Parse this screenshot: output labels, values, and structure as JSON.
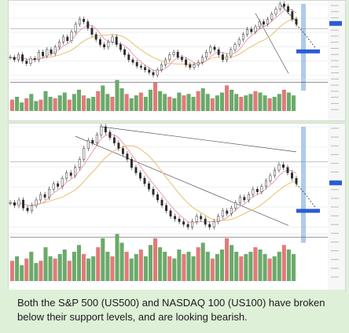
{
  "caption": {
    "text": "Both the S&P 500 (US500) and NASDAQ 100 (US100) have broken below their support levels, and are looking bearish."
  },
  "colors": {
    "background": "#dff0d8",
    "panel": "#ffffff",
    "candle": "#2b2b2b",
    "trendline": "#555555",
    "ma_fast": "#e8a0b0",
    "ma_slow": "#e8c070",
    "projection_band": "#8fb3e6",
    "volume_up": "#6aaa6a",
    "volume_down": "#e27a7a",
    "price_tag": "#2a5bd7"
  },
  "chart_data": [
    {
      "type": "line",
      "symbol": "US500",
      "price_series": [
        32,
        30,
        34,
        29,
        27,
        31,
        30,
        36,
        33,
        38,
        35,
        40,
        44,
        48,
        45,
        52,
        58,
        62,
        60,
        55,
        50,
        46,
        42,
        40,
        44,
        48,
        42,
        38,
        34,
        30,
        28,
        25,
        24,
        22,
        20,
        18,
        22,
        26,
        30,
        34,
        36,
        32,
        30,
        26,
        24,
        26,
        28,
        32,
        36,
        40,
        38,
        34,
        30,
        33,
        38,
        42,
        46,
        50,
        54,
        52,
        56,
        60,
        58,
        62,
        66,
        70,
        74,
        72,
        68,
        62,
        58
      ],
      "volume": [
        8,
        10,
        6,
        9,
        12,
        7,
        8,
        14,
        10,
        9,
        11,
        13,
        8,
        12,
        15,
        11,
        9,
        10,
        14,
        18,
        12,
        10,
        22,
        16,
        12,
        9,
        11,
        13,
        10,
        15,
        20,
        14,
        12,
        10,
        9,
        13,
        11,
        12,
        10,
        14,
        16,
        12,
        9,
        11,
        13,
        18,
        15,
        12,
        10,
        11,
        12,
        14,
        13,
        11,
        9,
        10,
        12,
        15,
        13,
        11
      ]
    },
    {
      "type": "line",
      "symbol": "US100",
      "price_series": [
        40,
        38,
        42,
        36,
        34,
        38,
        42,
        46,
        44,
        50,
        54,
        52,
        58,
        62,
        60,
        66,
        72,
        80,
        86,
        84,
        90,
        96,
        92,
        88,
        84,
        80,
        76,
        72,
        66,
        62,
        58,
        54,
        50,
        46,
        42,
        38,
        34,
        30,
        28,
        26,
        24,
        22,
        26,
        30,
        28,
        24,
        22,
        26,
        30,
        34,
        32,
        36,
        40,
        44,
        42,
        46,
        50,
        48,
        52,
        56,
        60,
        64,
        68,
        66,
        62,
        58,
        54
      ],
      "volume": [
        9,
        11,
        7,
        10,
        13,
        8,
        9,
        15,
        11,
        10,
        12,
        14,
        9,
        13,
        16,
        12,
        10,
        11,
        15,
        19,
        13,
        11,
        21,
        17,
        13,
        10,
        12,
        14,
        11,
        16,
        19,
        15,
        13,
        11,
        10,
        14,
        12,
        13,
        11,
        15,
        17,
        13,
        10,
        12,
        14,
        19,
        16,
        13,
        11,
        12,
        13,
        15,
        14,
        12,
        10,
        11,
        13,
        16,
        14,
        12
      ]
    }
  ]
}
